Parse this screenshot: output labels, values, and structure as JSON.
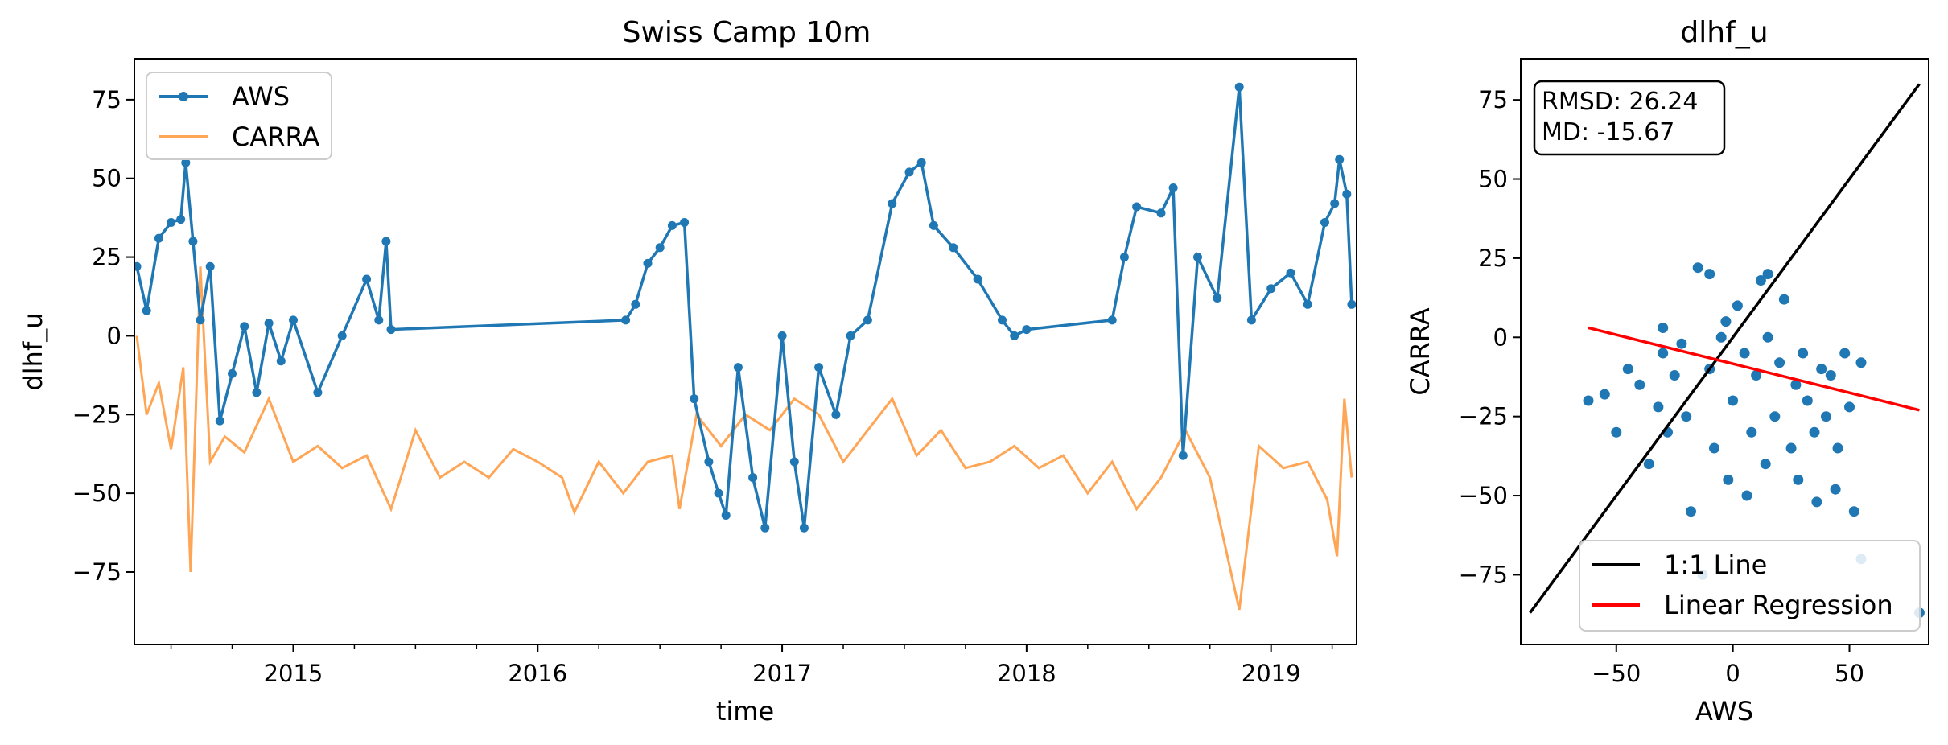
{
  "colors": {
    "aws": "#1f77b4",
    "carra": "#ff7f0e",
    "one_to_one": "#000000",
    "regression": "#ff0000"
  },
  "chart_data": [
    {
      "type": "line",
      "title": "Swiss Camp 10m",
      "xlabel": "time",
      "ylabel": "dlhf_u",
      "xlim": [
        2014.35,
        2019.35
      ],
      "ylim": [
        -98,
        88
      ],
      "xticks": [
        {
          "value": 2015,
          "label": "2015"
        },
        {
          "value": 2016,
          "label": "2016"
        },
        {
          "value": 2017,
          "label": "2017"
        },
        {
          "value": 2018,
          "label": "2018"
        },
        {
          "value": 2019,
          "label": "2019"
        }
      ],
      "yticks": [
        {
          "value": 75,
          "label": "75"
        },
        {
          "value": 50,
          "label": "50"
        },
        {
          "value": 25,
          "label": "25"
        },
        {
          "value": 0,
          "label": "0"
        },
        {
          "value": -25,
          "label": "−25"
        },
        {
          "value": -50,
          "label": "−50"
        },
        {
          "value": -75,
          "label": "−75"
        }
      ],
      "legend_position": "top-left",
      "series": [
        {
          "name": "AWS",
          "points": [
            [
              2014.36,
              22
            ],
            [
              2014.4,
              8
            ],
            [
              2014.45,
              31
            ],
            [
              2014.5,
              36
            ],
            [
              2014.54,
              37
            ],
            [
              2014.56,
              55
            ],
            [
              2014.59,
              30
            ],
            [
              2014.62,
              5
            ],
            [
              2014.66,
              22
            ],
            [
              2014.7,
              -27
            ],
            [
              2014.75,
              -12
            ],
            [
              2014.8,
              3
            ],
            [
              2014.85,
              -18
            ],
            [
              2014.9,
              4
            ],
            [
              2014.95,
              -8
            ],
            [
              2015.0,
              5
            ],
            [
              2015.1,
              -18
            ],
            [
              2015.2,
              0
            ],
            [
              2015.3,
              18
            ],
            [
              2015.35,
              5
            ],
            [
              2015.38,
              30
            ],
            [
              2015.4,
              2
            ],
            [
              2016.36,
              5
            ],
            [
              2016.4,
              10
            ],
            [
              2016.45,
              23
            ],
            [
              2016.5,
              28
            ],
            [
              2016.55,
              35
            ],
            [
              2016.6,
              36
            ],
            [
              2016.64,
              -20
            ],
            [
              2016.7,
              -40
            ],
            [
              2016.74,
              -50
            ],
            [
              2016.77,
              -57
            ],
            [
              2016.82,
              -10
            ],
            [
              2016.88,
              -45
            ],
            [
              2016.93,
              -61
            ],
            [
              2017.0,
              0
            ],
            [
              2017.05,
              -40
            ],
            [
              2017.09,
              -61
            ],
            [
              2017.15,
              -10
            ],
            [
              2017.22,
              -25
            ],
            [
              2017.28,
              0
            ],
            [
              2017.35,
              5
            ],
            [
              2017.45,
              42
            ],
            [
              2017.52,
              52
            ],
            [
              2017.57,
              55
            ],
            [
              2017.62,
              35
            ],
            [
              2017.7,
              28
            ],
            [
              2017.8,
              18
            ],
            [
              2017.9,
              5
            ],
            [
              2017.95,
              0
            ],
            [
              2018.0,
              2
            ],
            [
              2018.35,
              5
            ],
            [
              2018.4,
              25
            ],
            [
              2018.45,
              41
            ],
            [
              2018.55,
              39
            ],
            [
              2018.6,
              47
            ],
            [
              2018.64,
              -38
            ],
            [
              2018.7,
              25
            ],
            [
              2018.78,
              12
            ],
            [
              2018.87,
              79
            ],
            [
              2018.92,
              5
            ],
            [
              2019.0,
              15
            ],
            [
              2019.08,
              20
            ],
            [
              2019.15,
              10
            ],
            [
              2019.22,
              36
            ],
            [
              2019.26,
              42
            ],
            [
              2019.28,
              56
            ],
            [
              2019.31,
              45
            ],
            [
              2019.33,
              10
            ]
          ]
        },
        {
          "name": "CARRA",
          "points": [
            [
              2014.36,
              0
            ],
            [
              2014.4,
              -25
            ],
            [
              2014.45,
              -15
            ],
            [
              2014.5,
              -36
            ],
            [
              2014.55,
              -10
            ],
            [
              2014.58,
              -75
            ],
            [
              2014.62,
              22
            ],
            [
              2014.66,
              -40
            ],
            [
              2014.72,
              -32
            ],
            [
              2014.8,
              -37
            ],
            [
              2014.9,
              -20
            ],
            [
              2015.0,
              -40
            ],
            [
              2015.1,
              -35
            ],
            [
              2015.2,
              -42
            ],
            [
              2015.3,
              -38
            ],
            [
              2015.4,
              -55
            ],
            [
              2015.5,
              -30
            ],
            [
              2015.6,
              -45
            ],
            [
              2015.7,
              -40
            ],
            [
              2015.8,
              -45
            ],
            [
              2015.9,
              -36
            ],
            [
              2016.0,
              -40
            ],
            [
              2016.1,
              -45
            ],
            [
              2016.15,
              -56
            ],
            [
              2016.25,
              -40
            ],
            [
              2016.35,
              -50
            ],
            [
              2016.45,
              -40
            ],
            [
              2016.55,
              -38
            ],
            [
              2016.58,
              -55
            ],
            [
              2016.65,
              -25
            ],
            [
              2016.75,
              -35
            ],
            [
              2016.85,
              -25
            ],
            [
              2016.95,
              -30
            ],
            [
              2017.05,
              -20
            ],
            [
              2017.15,
              -25
            ],
            [
              2017.25,
              -40
            ],
            [
              2017.35,
              -30
            ],
            [
              2017.45,
              -20
            ],
            [
              2017.55,
              -38
            ],
            [
              2017.65,
              -30
            ],
            [
              2017.75,
              -42
            ],
            [
              2017.85,
              -40
            ],
            [
              2017.95,
              -35
            ],
            [
              2018.05,
              -42
            ],
            [
              2018.15,
              -38
            ],
            [
              2018.25,
              -50
            ],
            [
              2018.35,
              -40
            ],
            [
              2018.45,
              -55
            ],
            [
              2018.55,
              -45
            ],
            [
              2018.65,
              -30
            ],
            [
              2018.75,
              -45
            ],
            [
              2018.87,
              -87
            ],
            [
              2018.95,
              -35
            ],
            [
              2019.05,
              -42
            ],
            [
              2019.15,
              -40
            ],
            [
              2019.23,
              -52
            ],
            [
              2019.27,
              -70
            ],
            [
              2019.3,
              -20
            ],
            [
              2019.33,
              -45
            ]
          ]
        }
      ]
    },
    {
      "type": "scatter",
      "title": "dlhf_u",
      "xlabel": "AWS",
      "ylabel": "CARRA",
      "xlim": [
        -91,
        84
      ],
      "ylim": [
        -97,
        88
      ],
      "xticks": [
        {
          "value": -50,
          "label": "−50"
        },
        {
          "value": 0,
          "label": "0"
        },
        {
          "value": 50,
          "label": "50"
        }
      ],
      "yticks": [
        {
          "value": 75,
          "label": "75"
        },
        {
          "value": 50,
          "label": "50"
        },
        {
          "value": 25,
          "label": "25"
        },
        {
          "value": 0,
          "label": "0"
        },
        {
          "value": -25,
          "label": "−25"
        },
        {
          "value": -50,
          "label": "−50"
        },
        {
          "value": -75,
          "label": "−75"
        }
      ],
      "stats": {
        "rmsd": "RMSD: 26.24",
        "md": "MD: -15.67"
      },
      "legend_position": "bottom-right",
      "series": [
        {
          "name": "",
          "points": [
            [
              -62,
              -20
            ],
            [
              -55,
              -18
            ],
            [
              -50,
              -30
            ],
            [
              -45,
              -10
            ],
            [
              -40,
              -15
            ],
            [
              -36,
              -40
            ],
            [
              -32,
              -22
            ],
            [
              -30,
              -5
            ],
            [
              -28,
              -30
            ],
            [
              -25,
              -12
            ],
            [
              -22,
              -2
            ],
            [
              -20,
              -25
            ],
            [
              -18,
              -55
            ],
            [
              -15,
              22
            ],
            [
              -13,
              -75
            ],
            [
              -10,
              -10
            ],
            [
              -8,
              -35
            ],
            [
              -5,
              0
            ],
            [
              -3,
              5
            ],
            [
              -2,
              -45
            ],
            [
              0,
              -20
            ],
            [
              2,
              10
            ],
            [
              5,
              -5
            ],
            [
              6,
              -50
            ],
            [
              8,
              -30
            ],
            [
              10,
              -12
            ],
            [
              12,
              18
            ],
            [
              14,
              -40
            ],
            [
              15,
              0
            ],
            [
              18,
              -25
            ],
            [
              20,
              -8
            ],
            [
              22,
              12
            ],
            [
              25,
              -35
            ],
            [
              27,
              -15
            ],
            [
              28,
              -45
            ],
            [
              30,
              -5
            ],
            [
              32,
              -20
            ],
            [
              35,
              -30
            ],
            [
              36,
              -52
            ],
            [
              38,
              -10
            ],
            [
              40,
              -25
            ],
            [
              42,
              -12
            ],
            [
              44,
              -48
            ],
            [
              45,
              -35
            ],
            [
              48,
              -5
            ],
            [
              50,
              -22
            ],
            [
              52,
              -55
            ],
            [
              55,
              -8
            ],
            [
              55,
              -70
            ],
            [
              80,
              -87
            ],
            [
              -30,
              3
            ],
            [
              -10,
              20
            ],
            [
              15,
              20
            ]
          ]
        }
      ],
      "lines": [
        {
          "name": "1:1 Line",
          "points": [
            [
              -87,
              -87
            ],
            [
              80,
              80
            ]
          ]
        },
        {
          "name": "Linear Regression",
          "points": [
            [
              -62,
              3
            ],
            [
              80,
              -23
            ]
          ]
        }
      ]
    }
  ]
}
